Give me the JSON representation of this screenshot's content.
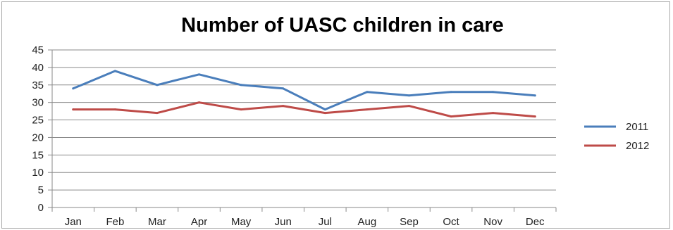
{
  "chart_data": {
    "type": "line",
    "title": "Number of UASC children in care",
    "xlabel": "",
    "ylabel": "",
    "categories": [
      "Jan",
      "Feb",
      "Mar",
      "Apr",
      "May",
      "Jun",
      "Jul",
      "Aug",
      "Sep",
      "Oct",
      "Nov",
      "Dec"
    ],
    "ylim": [
      0,
      45
    ],
    "yticks": [
      "0",
      "5",
      "10",
      "15",
      "20",
      "25",
      "30",
      "35",
      "40",
      "45"
    ],
    "grid": true,
    "legend_position": "right",
    "series": [
      {
        "name": "2011",
        "color": "#4a7ebb",
        "values": [
          34,
          39,
          35,
          38,
          35,
          34,
          28,
          33,
          32,
          33,
          33,
          32
        ]
      },
      {
        "name": "2012",
        "color": "#be4b48",
        "values": [
          28,
          28,
          27,
          30,
          28,
          29,
          27,
          28,
          29,
          26,
          27,
          26
        ]
      }
    ]
  }
}
